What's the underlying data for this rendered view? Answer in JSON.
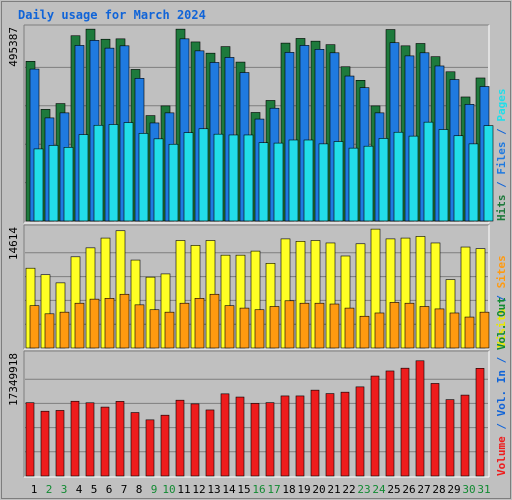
{
  "chart_data": {
    "type": "bar",
    "title": "Daily usage for March 2024",
    "colors": {
      "hits": "#1e7a3c",
      "files": "#1f7ae0",
      "pages": "#22dde8",
      "visits": "#ffff24",
      "sites": "#ff9a10",
      "kbytes": "#ee1c1c",
      "background": "#c0c0c0",
      "title_color": "#1064d8",
      "weekend_day_color": "#128a32",
      "weekday_day_color": "#000000"
    },
    "days": [
      "1",
      "2",
      "3",
      "4",
      "5",
      "6",
      "7",
      "8",
      "9",
      "10",
      "11",
      "12",
      "13",
      "14",
      "15",
      "16",
      "17",
      "18",
      "19",
      "20",
      "21",
      "22",
      "23",
      "24",
      "25",
      "26",
      "27",
      "28",
      "29",
      "30",
      "31"
    ],
    "weekend_days": [
      "2",
      "3",
      "9",
      "10",
      "16",
      "17",
      "23",
      "24",
      "30",
      "31"
    ],
    "panels": [
      {
        "id": "top",
        "ylabel_parts": [
          {
            "text": "Hits",
            "color": "#1e7a3c"
          },
          {
            "text": " / ",
            "color": "#1064d8"
          },
          {
            "text": "Files",
            "color": "#1f7ae0"
          },
          {
            "text": " / ",
            "color": "#1064d8"
          },
          {
            "text": "Pages",
            "color": "#22dde8"
          }
        ],
        "max_label": "495387",
        "ymax": 495387,
        "series": [
          {
            "name": "Hits",
            "color": "#1e7a3c",
            "values": [
              412000,
              288000,
              303000,
              478000,
              495000,
              469000,
              470000,
              391000,
              272000,
              297000,
              495000,
              462000,
              433000,
              450000,
              410000,
              280000,
              311000,
              459000,
              471000,
              464000,
              455000,
              398000,
              363000,
              297000,
              494000,
              452000,
              458000,
              424000,
              385000,
              320000,
              369000
            ]
          },
          {
            "name": "Files",
            "color": "#1f7ae0",
            "values": [
              392000,
              266000,
              279000,
              453000,
              466000,
              446000,
              452000,
              368000,
              253000,
              279000,
              470000,
              439000,
              409000,
              422000,
              383000,
              263000,
              291000,
              435000,
              453000,
              443000,
              434000,
              374000,
              344000,
              279000,
              460000,
              426000,
              434000,
              400000,
              365000,
              301000,
              347000
            ]
          },
          {
            "name": "Pages",
            "color": "#22dde8",
            "values": [
              186000,
              195000,
              190000,
              223000,
              247000,
              249000,
              254000,
              226000,
              212000,
              198000,
              228000,
              238000,
              224000,
              222000,
              222000,
              202000,
              201000,
              209000,
              209000,
              199000,
              205000,
              188000,
              193000,
              213000,
              229000,
              219000,
              255000,
              236000,
              220000,
              199000,
              246000
            ]
          }
        ]
      },
      {
        "id": "middle",
        "ylabel_parts": [
          {
            "text": "Visits",
            "color": "#e8e800"
          },
          {
            "text": " / ",
            "color": "#1064d8"
          },
          {
            "text": "Sites",
            "color": "#ff9a10"
          }
        ],
        "max_label": "14614",
        "ymax": 14614,
        "series": [
          {
            "name": "Visits",
            "color": "#ffff24",
            "values": [
              9800,
              9000,
              8000,
              11200,
              12300,
              13500,
              14400,
              10800,
              8700,
              9100,
              13200,
              12600,
              13200,
              11400,
              11400,
              11900,
              10400,
              13400,
              13100,
              13200,
              12900,
              11300,
              12800,
              14600,
              13400,
              13500,
              13700,
              12900,
              8400,
              12400,
              12200
            ]
          },
          {
            "name": "Sites",
            "color": "#ff9a10",
            "values": [
              5200,
              4200,
              4400,
              5500,
              6000,
              6100,
              6600,
              5300,
              4700,
              4400,
              5500,
              6100,
              6600,
              5200,
              4900,
              4700,
              5100,
              5800,
              5500,
              5500,
              5400,
              4900,
              3900,
              4300,
              5600,
              5500,
              5100,
              4800,
              4300,
              3800,
              4400
            ]
          }
        ]
      },
      {
        "id": "bottom",
        "ylabel_parts": [
          {
            "text": "Volume",
            "color": "#ee1c1c"
          },
          {
            "text": " / ",
            "color": "#1064d8"
          },
          {
            "text": "Vol. In",
            "color": "#1064d8"
          },
          {
            "text": " / ",
            "color": "#1064d8"
          },
          {
            "text": "Vol. Out",
            "color": "#128a32"
          }
        ],
        "max_label": "17349918",
        "ymax": 17349918,
        "series": [
          {
            "name": "Volume",
            "color": "#ee1c1c",
            "values": [
              10510000,
              9290000,
              9400000,
              10720000,
              10500000,
              9880000,
              10700000,
              9100000,
              8050000,
              8720000,
              10870000,
              10340000,
              9470000,
              11780000,
              11320000,
              10410000,
              10520000,
              11480000,
              11480000,
              12310000,
              11820000,
              12020000,
              12780000,
              14330000,
              15060000,
              15460000,
              16520000,
              13270000,
              10950000,
              11600000,
              15440000
            ]
          }
        ]
      }
    ]
  }
}
